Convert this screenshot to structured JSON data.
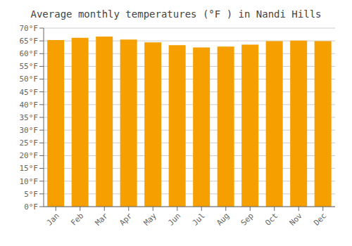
{
  "chart_data": {
    "type": "bar",
    "title": "Average monthly temperatures (°F ) in Nandi Hills",
    "categories": [
      "Jan",
      "Feb",
      "Mar",
      "Apr",
      "May",
      "Jun",
      "Jul",
      "Aug",
      "Sep",
      "Oct",
      "Nov",
      "Dec"
    ],
    "values": [
      65.3,
      66.2,
      66.7,
      65.5,
      64.4,
      63.3,
      62.4,
      62.8,
      63.5,
      64.9,
      65.1,
      64.9
    ],
    "color": "#F5A000",
    "ylim": [
      0,
      70
    ],
    "yticks": [
      {
        "value": 0,
        "label": "0°F"
      },
      {
        "value": 5,
        "label": "5°F"
      },
      {
        "value": 10,
        "label": "10°F"
      },
      {
        "value": 15,
        "label": "15°F"
      },
      {
        "value": 20,
        "label": "20°F"
      },
      {
        "value": 25,
        "label": "25°F"
      },
      {
        "value": 30,
        "label": "30°F"
      },
      {
        "value": 35,
        "label": "35°F"
      },
      {
        "value": 40,
        "label": "40°F"
      },
      {
        "value": 45,
        "label": "45°F"
      },
      {
        "value": 50,
        "label": "50°F"
      },
      {
        "value": 55,
        "label": "55°F"
      },
      {
        "value": 60,
        "label": "60°F"
      },
      {
        "value": 65,
        "label": "65°F"
      },
      {
        "value": 70,
        "label": "70°F"
      }
    ],
    "grid": true
  }
}
